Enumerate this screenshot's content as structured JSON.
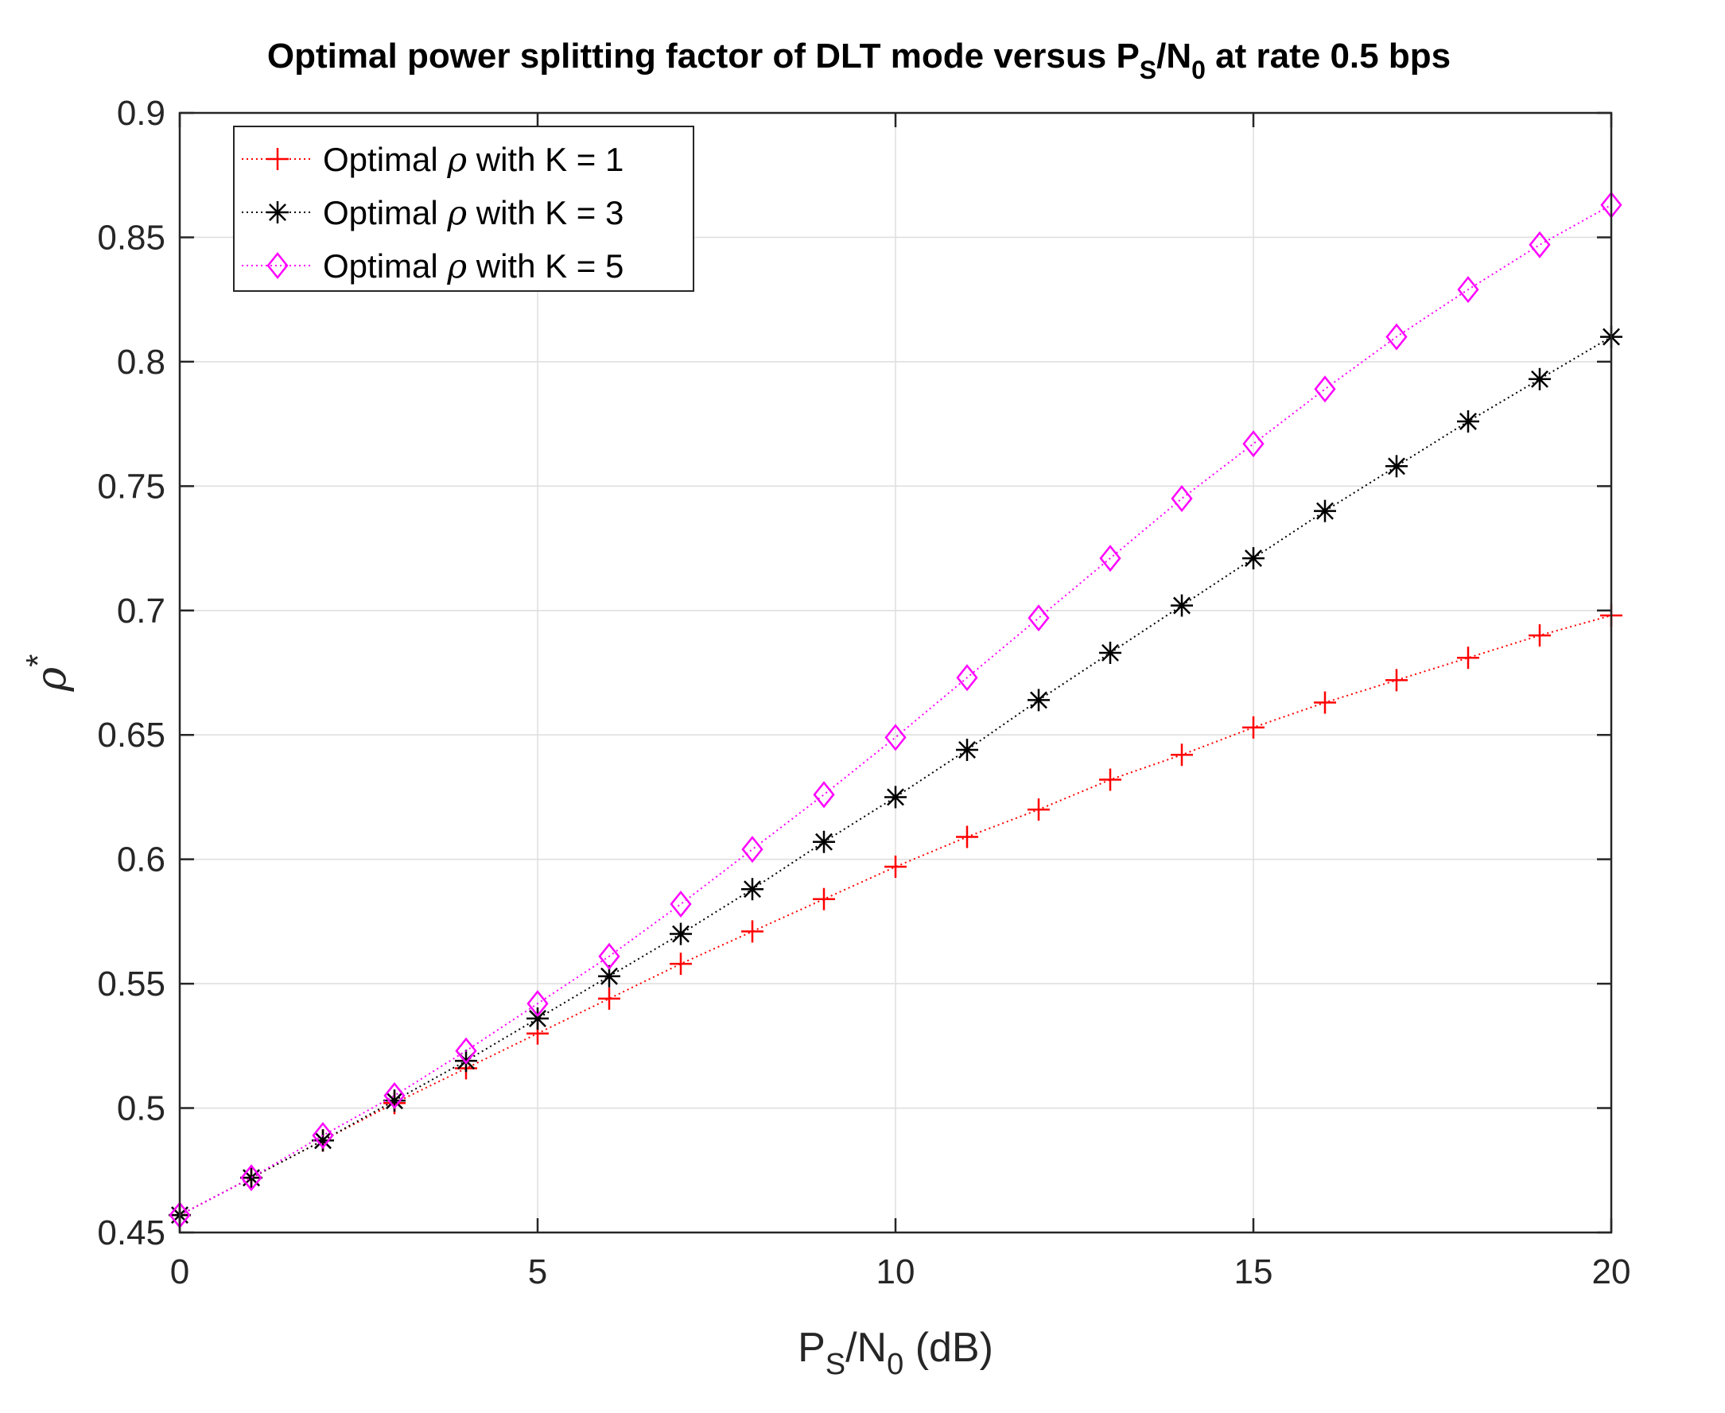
{
  "chart_data": {
    "type": "line",
    "title": {
      "prefix": "Optimal power splitting factor of DLT mode versus P",
      "sub1": "S",
      "mid": "/N",
      "sub2": "0",
      "suffix": " at rate 0.5 bps"
    },
    "xlabel": {
      "main": "P",
      "sub1": "S",
      "mid": "/N",
      "sub2": "0",
      "suffix": " (dB)"
    },
    "ylabel": {
      "symbol": "ρ",
      "sup": "*"
    },
    "xlim": [
      0,
      20
    ],
    "ylim": [
      0.45,
      0.9
    ],
    "xticks": [
      0,
      5,
      10,
      15,
      20
    ],
    "xtick_labels": [
      "0",
      "5",
      "10",
      "15",
      "20"
    ],
    "yticks": [
      0.45,
      0.5,
      0.55,
      0.6,
      0.65,
      0.7,
      0.75,
      0.8,
      0.85,
      0.9
    ],
    "ytick_labels": [
      "0.45",
      "0.5",
      "0.55",
      "0.6",
      "0.65",
      "0.7",
      "0.75",
      "0.8",
      "0.85",
      "0.9"
    ],
    "grid": true,
    "legend_position": "top-left",
    "x": [
      0,
      1,
      2,
      3,
      4,
      5,
      6,
      7,
      8,
      9,
      10,
      11,
      12,
      13,
      14,
      15,
      16,
      17,
      18,
      19,
      20
    ],
    "series": [
      {
        "name": "Optimal ρ with K = 1",
        "legend": {
          "prefix": "Optimal ",
          "symbol": "ρ",
          "suffix": " with K = 1"
        },
        "color": "#ff0000",
        "marker": "plus",
        "values": [
          0.457,
          0.472,
          0.487,
          0.502,
          0.516,
          0.53,
          0.544,
          0.558,
          0.571,
          0.584,
          0.597,
          0.609,
          0.62,
          0.632,
          0.642,
          0.653,
          0.663,
          0.672,
          0.681,
          0.69,
          0.698
        ]
      },
      {
        "name": "Optimal ρ with K = 3",
        "legend": {
          "prefix": "Optimal ",
          "symbol": "ρ",
          "suffix": " with K = 3"
        },
        "color": "#000000",
        "marker": "asterisk",
        "values": [
          0.457,
          0.472,
          0.487,
          0.503,
          0.519,
          0.536,
          0.553,
          0.57,
          0.588,
          0.607,
          0.625,
          0.644,
          0.664,
          0.683,
          0.702,
          0.721,
          0.74,
          0.758,
          0.776,
          0.793,
          0.81
        ]
      },
      {
        "name": "Optimal ρ with K = 5",
        "legend": {
          "prefix": "Optimal ",
          "symbol": "ρ",
          "suffix": " with K = 5"
        },
        "color": "#ff00ff",
        "marker": "diamond",
        "values": [
          0.457,
          0.472,
          0.489,
          0.505,
          0.523,
          0.542,
          0.561,
          0.582,
          0.604,
          0.626,
          0.649,
          0.673,
          0.697,
          0.721,
          0.745,
          0.767,
          0.789,
          0.81,
          0.829,
          0.847,
          0.863
        ]
      }
    ]
  }
}
